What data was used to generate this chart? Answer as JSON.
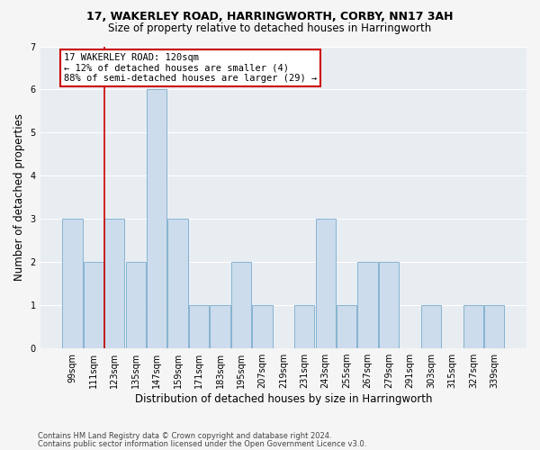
{
  "title1": "17, WAKERLEY ROAD, HARRINGWORTH, CORBY, NN17 3AH",
  "title2": "Size of property relative to detached houses in Harringworth",
  "xlabel": "Distribution of detached houses by size in Harringworth",
  "ylabel": "Number of detached properties",
  "categories": [
    "99sqm",
    "111sqm",
    "123sqm",
    "135sqm",
    "147sqm",
    "159sqm",
    "171sqm",
    "183sqm",
    "195sqm",
    "207sqm",
    "219sqm",
    "231sqm",
    "243sqm",
    "255sqm",
    "267sqm",
    "279sqm",
    "291sqm",
    "303sqm",
    "315sqm",
    "327sqm",
    "339sqm"
  ],
  "values": [
    3,
    2,
    3,
    2,
    6,
    3,
    1,
    1,
    2,
    1,
    0,
    1,
    3,
    1,
    2,
    2,
    0,
    1,
    0,
    1,
    1
  ],
  "bar_color": "#ccdcec",
  "bar_edge_color": "#7aabcc",
  "red_line_index": 1.5,
  "highlight_color": "#cc0000",
  "annotation_text": "17 WAKERLEY ROAD: 120sqm\n← 12% of detached houses are smaller (4)\n88% of semi-detached houses are larger (29) →",
  "annotation_box_facecolor": "white",
  "annotation_box_edgecolor": "#cc0000",
  "ylim": [
    0,
    7
  ],
  "yticks": [
    0,
    1,
    2,
    3,
    4,
    5,
    6,
    7
  ],
  "footer1": "Contains HM Land Registry data © Crown copyright and database right 2024.",
  "footer2": "Contains public sector information licensed under the Open Government Licence v3.0.",
  "fig_facecolor": "#f5f5f5",
  "plot_facecolor": "#e8edf2",
  "grid_color": "#ffffff",
  "title1_fontsize": 9,
  "title2_fontsize": 8.5,
  "ylabel_fontsize": 8.5,
  "xlabel_fontsize": 8.5,
  "tick_fontsize": 7,
  "footer_fontsize": 6,
  "annot_fontsize": 7.5
}
